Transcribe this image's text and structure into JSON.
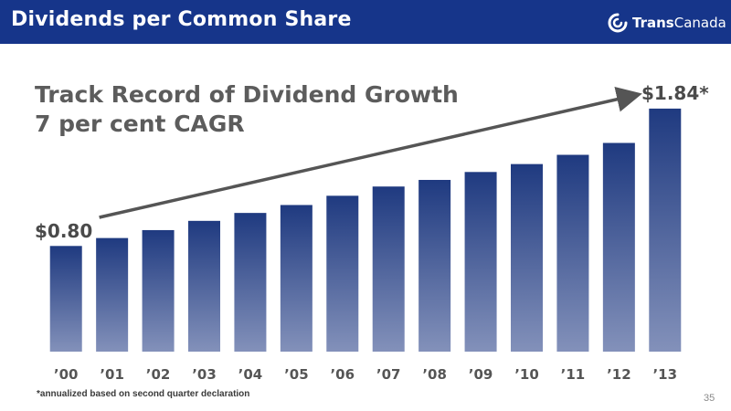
{
  "header": {
    "title": "Dividends per Common Share"
  },
  "logo": {
    "name_bold": "Trans",
    "name_light": "Canada"
  },
  "headline": {
    "line1": "Track Record of Dividend Growth",
    "line2": "7 per cent CAGR"
  },
  "annotations": {
    "start": "$0.80",
    "end": "$1.84*"
  },
  "footnote": "*annualized based on second quarter declaration",
  "page_number": "35",
  "colors": {
    "header": "#16358a",
    "bar_top": "#1f3a80",
    "bar_bottom": "#8391ba",
    "arrow": "#555555"
  },
  "chart_data": {
    "type": "bar",
    "title": "",
    "categories": [
      "’00",
      "’01",
      "’02",
      "’03",
      "’04",
      "’05",
      "’06",
      "’07",
      "’08",
      "’09",
      "’10",
      "’11",
      "’12",
      "’13"
    ],
    "series": [
      {
        "values": [
          0.8,
          0.86,
          0.92,
          0.99,
          1.05,
          1.11,
          1.18,
          1.25,
          1.3,
          1.36,
          1.42,
          1.49,
          1.58,
          1.84
        ]
      }
    ],
    "ylim": [
      0,
      1.86
    ],
    "grid": false,
    "legend": "none",
    "trend_arrow": {
      "from": 0.8,
      "to": 1.84
    }
  }
}
